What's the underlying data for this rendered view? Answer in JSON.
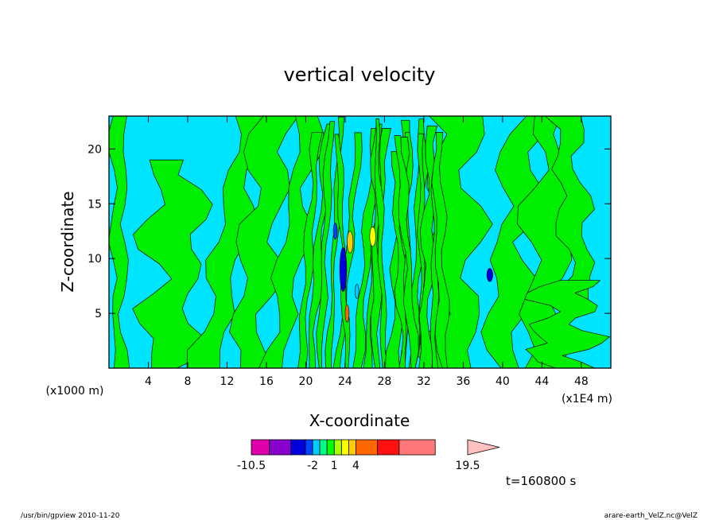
{
  "chart_data": {
    "type": "heatmap",
    "title": "vertical velocity",
    "xlabel": "X-coordinate",
    "ylabel": "Z-coordinate",
    "x_units_left": "(x1000 m)",
    "x_units_right": "(x1E4 m)",
    "xlim": [
      0,
      51
    ],
    "ylim": [
      0,
      23
    ],
    "xticks": [
      4,
      8,
      12,
      16,
      20,
      24,
      28,
      32,
      36,
      40,
      44,
      48
    ],
    "yticks": [
      5,
      10,
      15,
      20
    ],
    "colorbar": {
      "levels": [
        -10.5,
        -8,
        -5,
        -3,
        -2,
        -1,
        0,
        1,
        2,
        3,
        4,
        7,
        10,
        15,
        19.5
      ],
      "colors": [
        "#dd00aa",
        "#8800cc",
        "#0000dd",
        "#0044ff",
        "#00ccff",
        "#00ff88",
        "#00ff00",
        "#aaff00",
        "#ffff00",
        "#ffcc00",
        "#ff6600",
        "#ff1111",
        "#ff7777"
      ],
      "extend_color": "#ffc0c0",
      "tick_labels": [
        "-10.5",
        "-2",
        "1",
        "4",
        "19.5"
      ],
      "tick_values": [
        -10.5,
        -2,
        1,
        4,
        19.5
      ]
    },
    "field_colors": {
      "background": "#00e5ff",
      "positive": "#00ee00"
    },
    "time_label": "t=160800 s"
  },
  "footer": {
    "left": "/usr/bin/gpview   2010-11-20",
    "right": "arare-earth_VelZ.nc@VelZ"
  }
}
